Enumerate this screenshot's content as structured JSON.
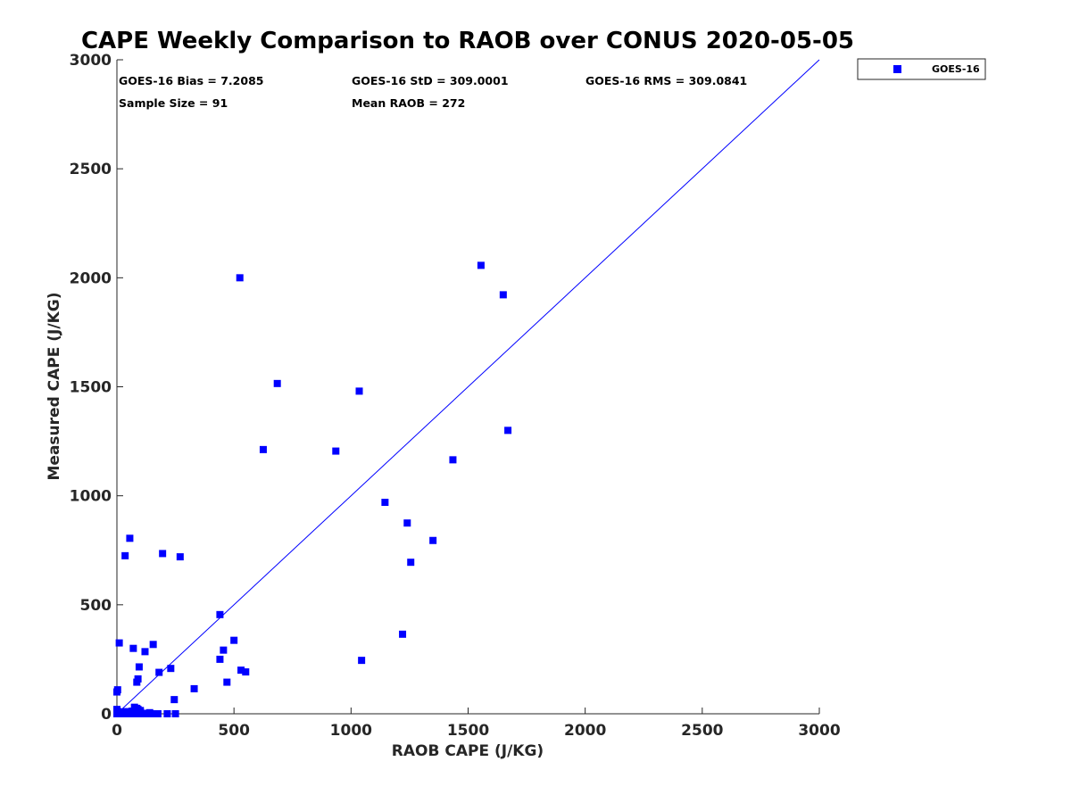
{
  "chart_data": {
    "type": "scatter",
    "title": "CAPE Weekly Comparison to RAOB over CONUS 2020-05-05",
    "xlabel": "RAOB CAPE (J/KG)",
    "ylabel": "Measured CAPE (J/KG)",
    "xlim": [
      0,
      3000
    ],
    "ylim": [
      0,
      3000
    ],
    "xticks": [
      0,
      500,
      1000,
      1500,
      2000,
      2500,
      3000
    ],
    "yticks": [
      0,
      500,
      1000,
      1500,
      2000,
      2500,
      3000
    ],
    "grid": false,
    "legend_position": "outside-top-right",
    "reference_line": {
      "from": [
        0,
        0
      ],
      "to": [
        3000,
        3000
      ],
      "color": "#0000ff"
    },
    "series": [
      {
        "name": "GOES-16",
        "color": "#0000ff",
        "marker": "square",
        "points": [
          [
            0,
            0
          ],
          [
            2,
            5
          ],
          [
            5,
            10
          ],
          [
            0,
            100
          ],
          [
            3,
            110
          ],
          [
            0,
            20
          ],
          [
            8,
            0
          ],
          [
            10,
            5
          ],
          [
            15,
            0
          ],
          [
            20,
            3
          ],
          [
            25,
            8
          ],
          [
            30,
            0
          ],
          [
            35,
            5
          ],
          [
            40,
            10
          ],
          [
            45,
            2
          ],
          [
            50,
            0
          ],
          [
            55,
            6
          ],
          [
            60,
            3
          ],
          [
            65,
            12
          ],
          [
            70,
            0
          ],
          [
            75,
            8
          ],
          [
            80,
            15
          ],
          [
            85,
            25
          ],
          [
            90,
            0
          ],
          [
            95,
            5
          ],
          [
            100,
            10
          ],
          [
            110,
            0
          ],
          [
            120,
            2
          ],
          [
            130,
            0
          ],
          [
            140,
            5
          ],
          [
            160,
            0
          ],
          [
            175,
            0
          ],
          [
            215,
            0
          ],
          [
            250,
            0
          ],
          [
            75,
            30
          ],
          [
            90,
            20
          ],
          [
            100,
            15
          ],
          [
            10,
            325
          ],
          [
            35,
            725
          ],
          [
            55,
            805
          ],
          [
            70,
            300
          ],
          [
            85,
            145
          ],
          [
            90,
            160
          ],
          [
            95,
            215
          ],
          [
            120,
            285
          ],
          [
            155,
            318
          ],
          [
            180,
            190
          ],
          [
            195,
            735
          ],
          [
            230,
            208
          ],
          [
            245,
            65
          ],
          [
            270,
            720
          ],
          [
            330,
            115
          ],
          [
            440,
            455
          ],
          [
            440,
            250
          ],
          [
            455,
            292
          ],
          [
            470,
            145
          ],
          [
            500,
            337
          ],
          [
            530,
            200
          ],
          [
            550,
            192
          ],
          [
            525,
            2000
          ],
          [
            625,
            1212
          ],
          [
            685,
            1515
          ],
          [
            935,
            1205
          ],
          [
            1035,
            1480
          ],
          [
            1045,
            245
          ],
          [
            1145,
            970
          ],
          [
            1220,
            365
          ],
          [
            1240,
            875
          ],
          [
            1255,
            695
          ],
          [
            1350,
            795
          ],
          [
            1435,
            1165
          ],
          [
            1555,
            2057
          ],
          [
            1650,
            1922
          ],
          [
            1670,
            1300
          ]
        ]
      }
    ],
    "stats": {
      "bias": "GOES-16 Bias = 7.2085",
      "std": "GOES-16 StD = 309.0001",
      "rms": "GOES-16 RMS = 309.0841",
      "sample_size": "Sample Size = 91",
      "mean_raob": "Mean RAOB = 272"
    },
    "legend": {
      "label": "GOES-16"
    }
  }
}
